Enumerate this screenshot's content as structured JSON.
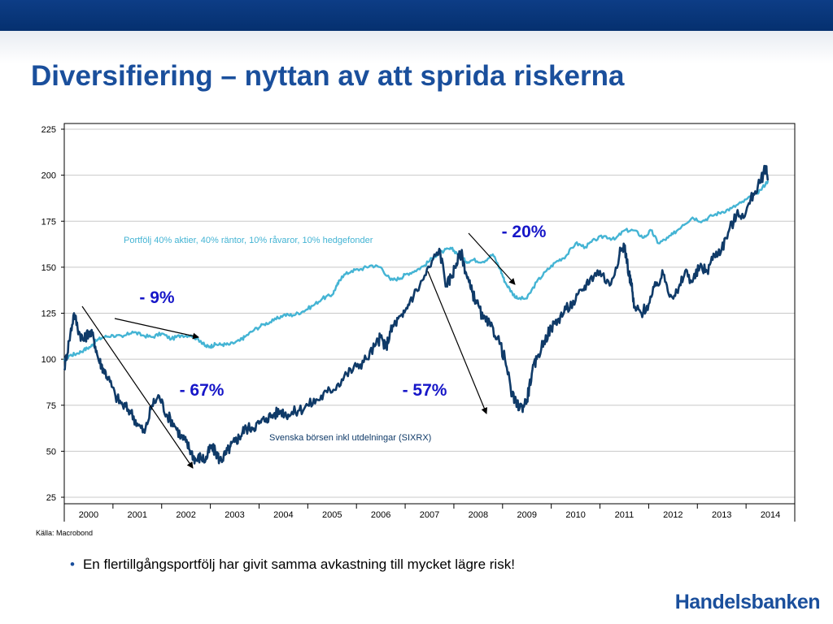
{
  "slide": {
    "title": "Diversifiering – nyttan av att sprida riskerna",
    "source": "Källa: Macrobond",
    "bullet": "En flertillgångsportfölj har givit samma avkastning till mycket lägre risk!",
    "brand": "Handelsbanken",
    "colors": {
      "brand_blue": "#1a4f9c",
      "header_band": "#05306f"
    }
  },
  "chart_data": {
    "type": "line",
    "x_tick_labels": [
      "2000",
      "2001",
      "2002",
      "2003",
      "2004",
      "2005",
      "2006",
      "2007",
      "2008",
      "2009",
      "2010",
      "2011",
      "2012",
      "2013",
      "2014"
    ],
    "xlim": [
      1999.5,
      2014.5
    ],
    "ylim": [
      25,
      225
    ],
    "y_ticks": [
      25,
      50,
      75,
      100,
      125,
      150,
      175,
      200,
      225
    ],
    "grid": true,
    "series": [
      {
        "name": "Portfölj 40% aktier, 40% räntor, 10% råvaror, 10% hedgefonder",
        "color": "#44b4d4",
        "x": [
          1999.5,
          1999.6,
          1999.75,
          1999.9,
          2000.05,
          2000.15,
          2000.3,
          2000.5,
          2000.7,
          2000.9,
          2001.1,
          2001.3,
          2001.5,
          2001.7,
          2001.9,
          2002.1,
          2002.3,
          2002.4,
          2002.5,
          2002.6,
          2002.75,
          2002.9,
          2003.1,
          2003.2,
          2003.4,
          2003.6,
          2003.8,
          2004.0,
          2004.2,
          2004.4,
          2004.6,
          2004.8,
          2005.0,
          2005.1,
          2005.2,
          2005.4,
          2005.6,
          2005.8,
          2006.0,
          2006.2,
          2006.4,
          2006.5,
          2006.7,
          2006.9,
          2007.1,
          2007.3,
          2007.45,
          2007.6,
          2007.75,
          2007.9,
          2008.1,
          2008.3,
          2008.45,
          2008.55,
          2008.7,
          2008.8,
          2009.0,
          2009.2,
          2009.4,
          2009.6,
          2009.8,
          2010.0,
          2010.2,
          2010.4,
          2010.6,
          2010.8,
          2011.0,
          2011.2,
          2011.4,
          2011.55,
          2011.7,
          2011.9,
          2012.0,
          2012.2,
          2012.4,
          2012.6,
          2012.8,
          2013.0,
          2013.2,
          2013.4,
          2013.6,
          2013.8,
          2013.95
        ],
        "y": [
          99,
          102,
          103,
          105,
          107,
          110,
          112,
          113,
          112,
          115,
          113,
          112,
          114,
          111,
          113,
          113,
          110,
          107,
          107,
          108,
          108,
          108,
          110,
          112,
          116,
          119,
          121,
          124,
          124,
          126,
          129,
          133,
          135,
          140,
          145,
          148,
          149,
          151,
          150,
          143,
          144,
          146,
          148,
          151,
          156,
          159,
          160,
          157,
          153,
          154,
          153,
          157,
          149,
          142,
          136,
          133,
          133,
          142,
          148,
          153,
          156,
          163,
          161,
          165,
          167,
          165,
          170,
          170,
          166,
          170,
          163,
          166,
          168,
          173,
          177,
          175,
          178,
          180,
          182,
          185,
          188,
          192,
          197
        ],
        "label": "Portfölj 40% aktier, 40% räntor, 10% råvaror, 10% hedgefonder"
      },
      {
        "name": "Svenska börsen inkl utdelningar (SIXRX)",
        "color": "#0f3a68",
        "x": [
          1999.5,
          1999.6,
          1999.7,
          1999.8,
          1999.9,
          2000.0,
          2000.1,
          2000.2,
          2000.3,
          2000.4,
          2000.55,
          2000.7,
          2000.85,
          2001.0,
          2001.15,
          2001.3,
          2001.45,
          2001.6,
          2001.75,
          2001.9,
          2002.0,
          2002.1,
          2002.2,
          2002.3,
          2002.4,
          2002.5,
          2002.6,
          2002.7,
          2002.8,
          2002.9,
          2003.0,
          2003.1,
          2003.2,
          2003.35,
          2003.5,
          2003.65,
          2003.8,
          2003.95,
          2004.1,
          2004.3,
          2004.5,
          2004.7,
          2004.9,
          2005.1,
          2005.3,
          2005.5,
          2005.7,
          2005.9,
          2006.0,
          2006.1,
          2006.2,
          2006.3,
          2006.45,
          2006.6,
          2006.8,
          2007.0,
          2007.2,
          2007.35,
          2007.45,
          2007.55,
          2007.65,
          2007.75,
          2007.85,
          2007.95,
          2008.1,
          2008.25,
          2008.4,
          2008.55,
          2008.7,
          2008.8,
          2008.9,
          2009.0,
          2009.1,
          2009.2,
          2009.35,
          2009.5,
          2009.65,
          2009.8,
          2010.0,
          2010.15,
          2010.3,
          2010.5,
          2010.7,
          2010.9,
          2011.0,
          2011.1,
          2011.15,
          2011.2,
          2011.35,
          2011.5,
          2011.65,
          2011.8,
          2011.95,
          2012.1,
          2012.25,
          2012.4,
          2012.55,
          2012.7,
          2012.85,
          2013.0,
          2013.15,
          2013.3,
          2013.5,
          2013.65,
          2013.8,
          2013.9,
          2013.95
        ],
        "y": [
          95,
          110,
          125,
          115,
          110,
          115,
          112,
          100,
          95,
          90,
          80,
          75,
          72,
          65,
          60,
          75,
          80,
          70,
          65,
          58,
          55,
          50,
          45,
          47,
          45,
          52,
          50,
          45,
          48,
          52,
          55,
          58,
          62,
          63,
          65,
          68,
          70,
          72,
          70,
          72,
          75,
          78,
          82,
          86,
          92,
          96,
          100,
          108,
          112,
          106,
          115,
          120,
          123,
          132,
          140,
          150,
          160,
          140,
          145,
          152,
          158,
          147,
          138,
          132,
          122,
          118,
          112,
          100,
          80,
          75,
          74,
          78,
          92,
          100,
          110,
          117,
          122,
          127,
          132,
          138,
          144,
          148,
          140,
          157,
          162,
          146,
          140,
          128,
          125,
          130,
          140,
          146,
          135,
          136,
          148,
          142,
          150,
          148,
          157,
          160,
          170,
          178,
          180,
          190,
          196,
          205,
          198
        ]
      }
    ],
    "annotations": [
      "- 9%",
      "- 67%",
      "- 20%",
      "- 57%"
    ]
  }
}
